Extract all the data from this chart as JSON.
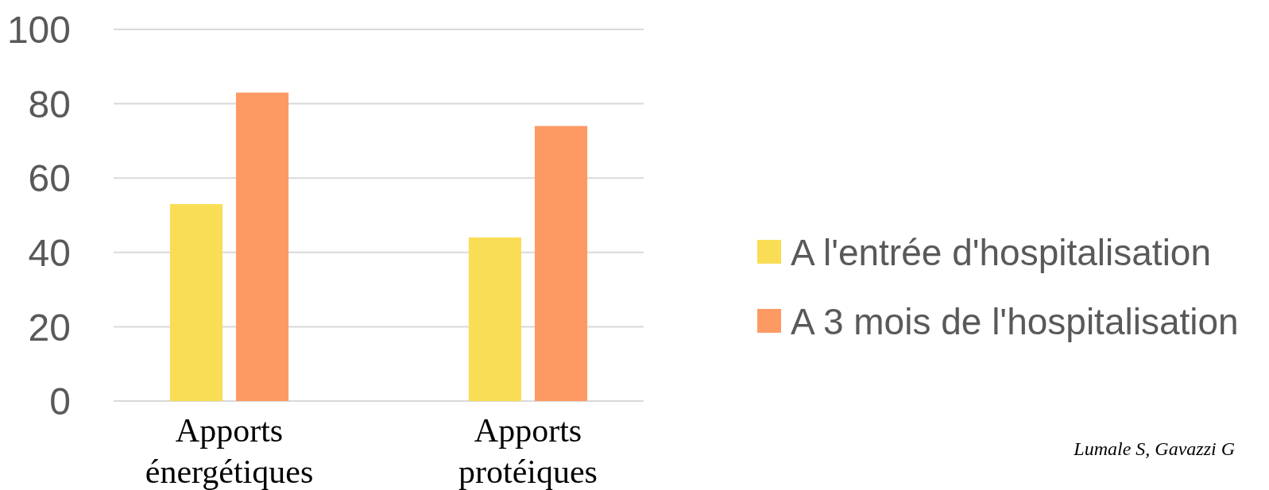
{
  "chart_data": {
    "type": "bar",
    "categories": [
      "Apports énergétiques",
      "Apports protéiques"
    ],
    "series": [
      {
        "name": "A l'entrée d'hospitalisation",
        "color": "#f9dd55",
        "values": [
          53,
          44
        ]
      },
      {
        "name": "A 3 mois de l'hospitalisation",
        "color": "#fd9a63",
        "values": [
          83,
          74
        ]
      }
    ],
    "ylim": [
      0,
      100
    ],
    "yticks": [
      0,
      20,
      40,
      60,
      80,
      100
    ],
    "grid": "y",
    "legend": "right",
    "annotations": [
      "Lumale S, Gavazzi G"
    ]
  }
}
